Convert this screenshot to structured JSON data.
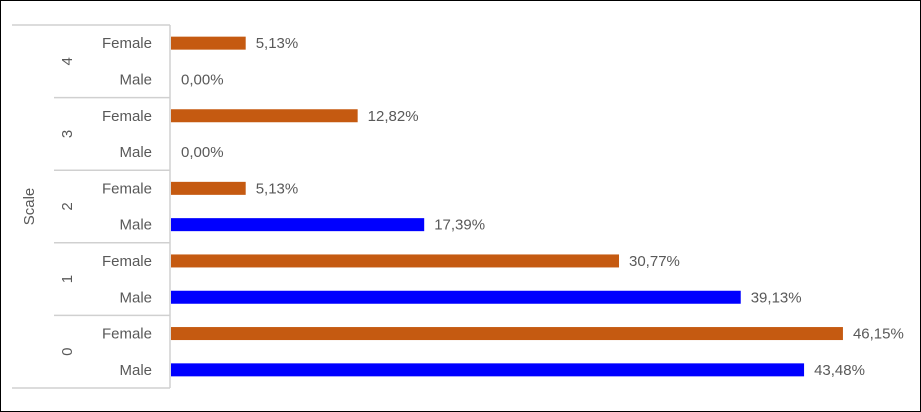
{
  "chart_data": {
    "type": "bar",
    "orientation": "horizontal",
    "ylabel": "Scale",
    "groups": [
      "4",
      "3",
      "2",
      "1",
      "0"
    ],
    "categories": [
      "Female",
      "Male"
    ],
    "series": [
      {
        "name": "Female",
        "color": "#C55A11",
        "values": {
          "4": 5.13,
          "3": 12.82,
          "2": 5.13,
          "1": 30.77,
          "0": 46.15
        },
        "labels": {
          "4": "5,13%",
          "3": "12,82%",
          "2": "5,13%",
          "1": "30,77%",
          "0": "46,15%"
        }
      },
      {
        "name": "Male",
        "color": "#0000FF",
        "values": {
          "4": 0,
          "3": 0,
          "2": 17.39,
          "1": 39.13,
          "0": 43.48
        },
        "labels": {
          "4": "0,00%",
          "3": "0,00%",
          "2": "17,39%",
          "1": "39,13%",
          "0": "43,48%"
        }
      }
    ],
    "xlim": [
      0,
      50
    ],
    "grid": false,
    "legend": "none"
  }
}
